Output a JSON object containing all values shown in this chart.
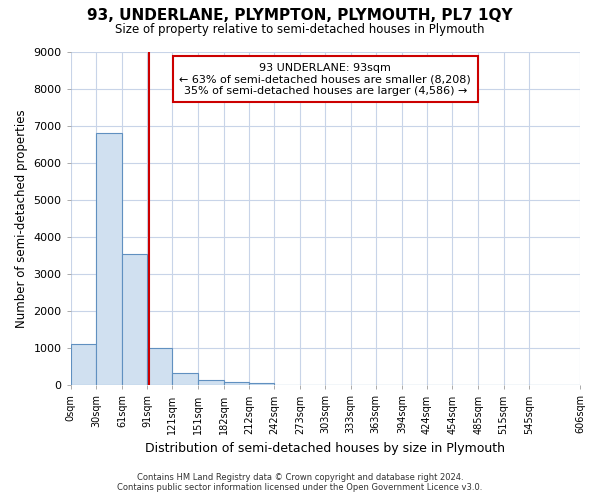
{
  "title": "93, UNDERLANE, PLYMPTON, PLYMOUTH, PL7 1QY",
  "subtitle": "Size of property relative to semi-detached houses in Plymouth",
  "xlabel": "Distribution of semi-detached houses by size in Plymouth",
  "ylabel": "Number of semi-detached properties",
  "bar_values": [
    1100,
    6800,
    3550,
    1000,
    320,
    130,
    90,
    70,
    0,
    0,
    0,
    0,
    0,
    0,
    0,
    0,
    0,
    0,
    0
  ],
  "bin_edges": [
    0,
    30,
    61,
    91,
    121,
    151,
    182,
    212,
    242,
    273,
    303,
    333,
    363,
    394,
    424,
    454,
    485,
    515,
    545,
    606
  ],
  "tick_labels": [
    "0sqm",
    "30sqm",
    "61sqm",
    "91sqm",
    "121sqm",
    "151sqm",
    "182sqm",
    "212sqm",
    "242sqm",
    "273sqm",
    "303sqm",
    "333sqm",
    "363sqm",
    "394sqm",
    "424sqm",
    "454sqm",
    "485sqm",
    "515sqm",
    "545sqm",
    "606sqm"
  ],
  "ylim": [
    0,
    9000
  ],
  "yticks": [
    0,
    1000,
    2000,
    3000,
    4000,
    5000,
    6000,
    7000,
    8000,
    9000
  ],
  "bar_color": "#d0e0f0",
  "bar_edge_color": "#6090c0",
  "property_sqm": 93,
  "property_label": "93 UNDERLANE: 93sqm",
  "pct_smaller": 63,
  "n_smaller": 8208,
  "pct_larger": 35,
  "n_larger": 4586,
  "vline_color": "#cc0000",
  "annotation_box_color": "#ffffff",
  "annotation_box_edge": "#cc0000",
  "bg_color": "#ffffff",
  "plot_bg_color": "#ffffff",
  "grid_color": "#c8d4e8",
  "footer_line1": "Contains HM Land Registry data © Crown copyright and database right 2024.",
  "footer_line2": "Contains public sector information licensed under the Open Government Licence v3.0."
}
